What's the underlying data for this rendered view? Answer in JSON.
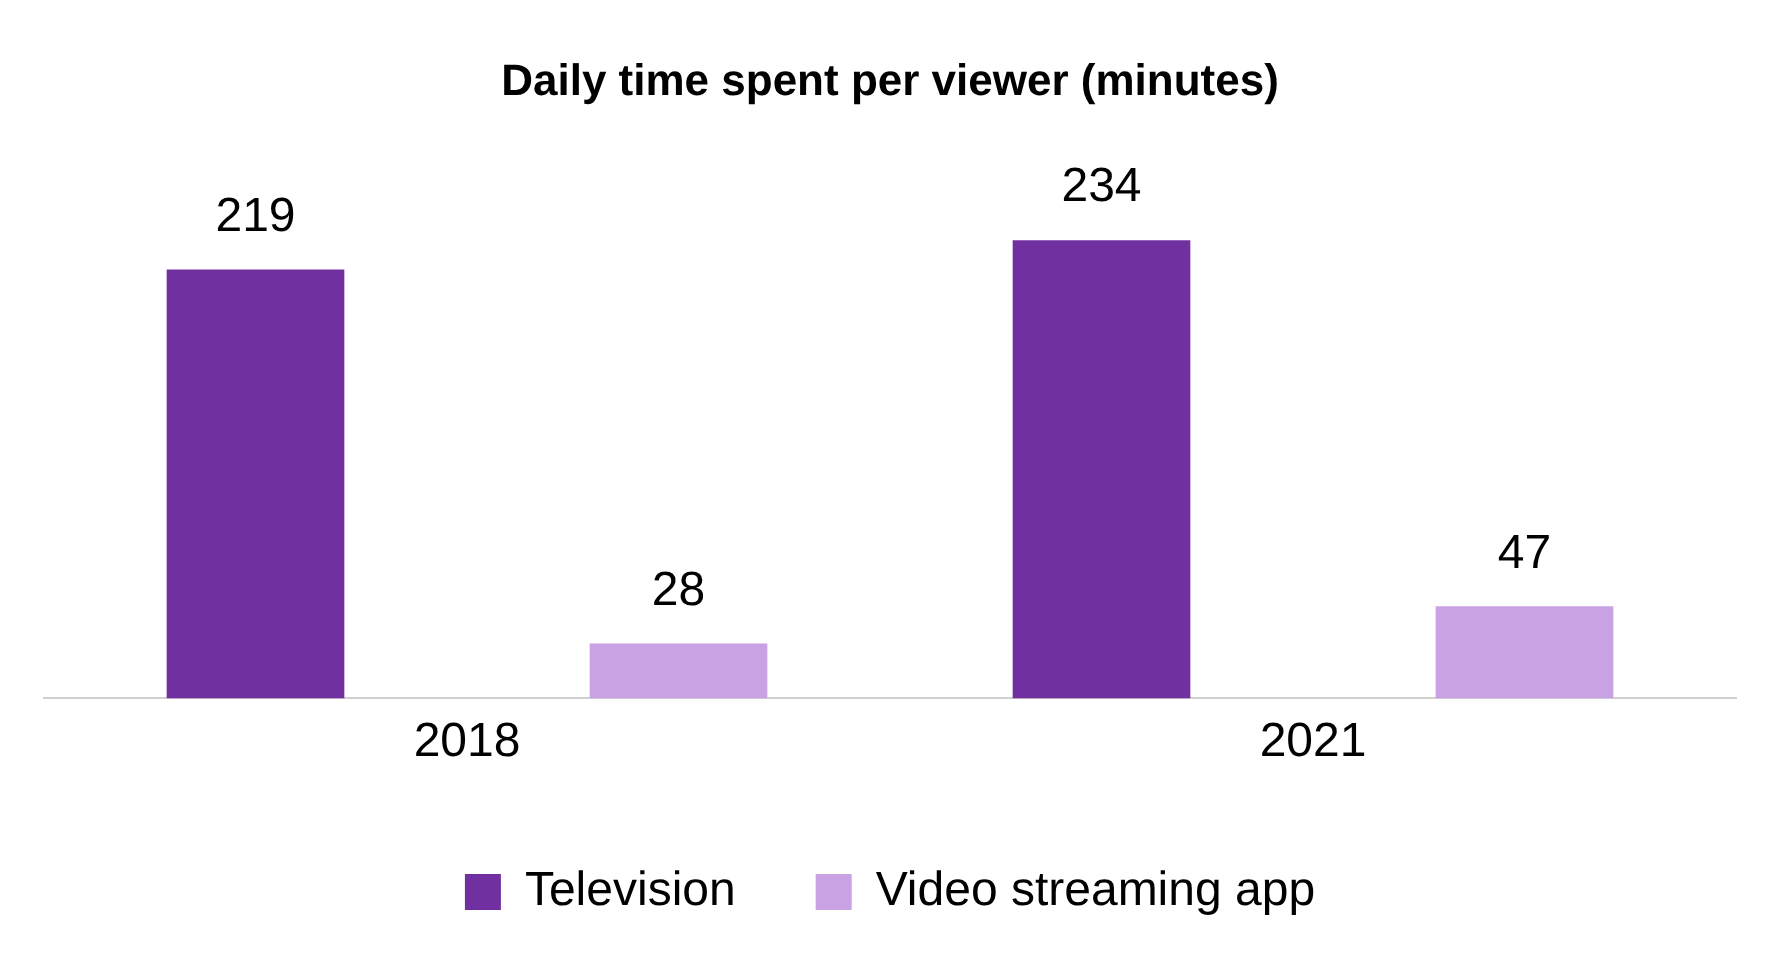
{
  "chart_data": {
    "type": "bar",
    "title": "Daily time spent per viewer (minutes)",
    "categories": [
      "2018",
      "2021"
    ],
    "series": [
      {
        "name": "Television",
        "color": "#7030a0",
        "values": [
          219,
          234
        ]
      },
      {
        "name": "Video streaming app",
        "color": "#c8a2e2",
        "values": [
          28,
          47
        ]
      }
    ],
    "data_labels": true,
    "grid": false,
    "legend": "bottom"
  }
}
